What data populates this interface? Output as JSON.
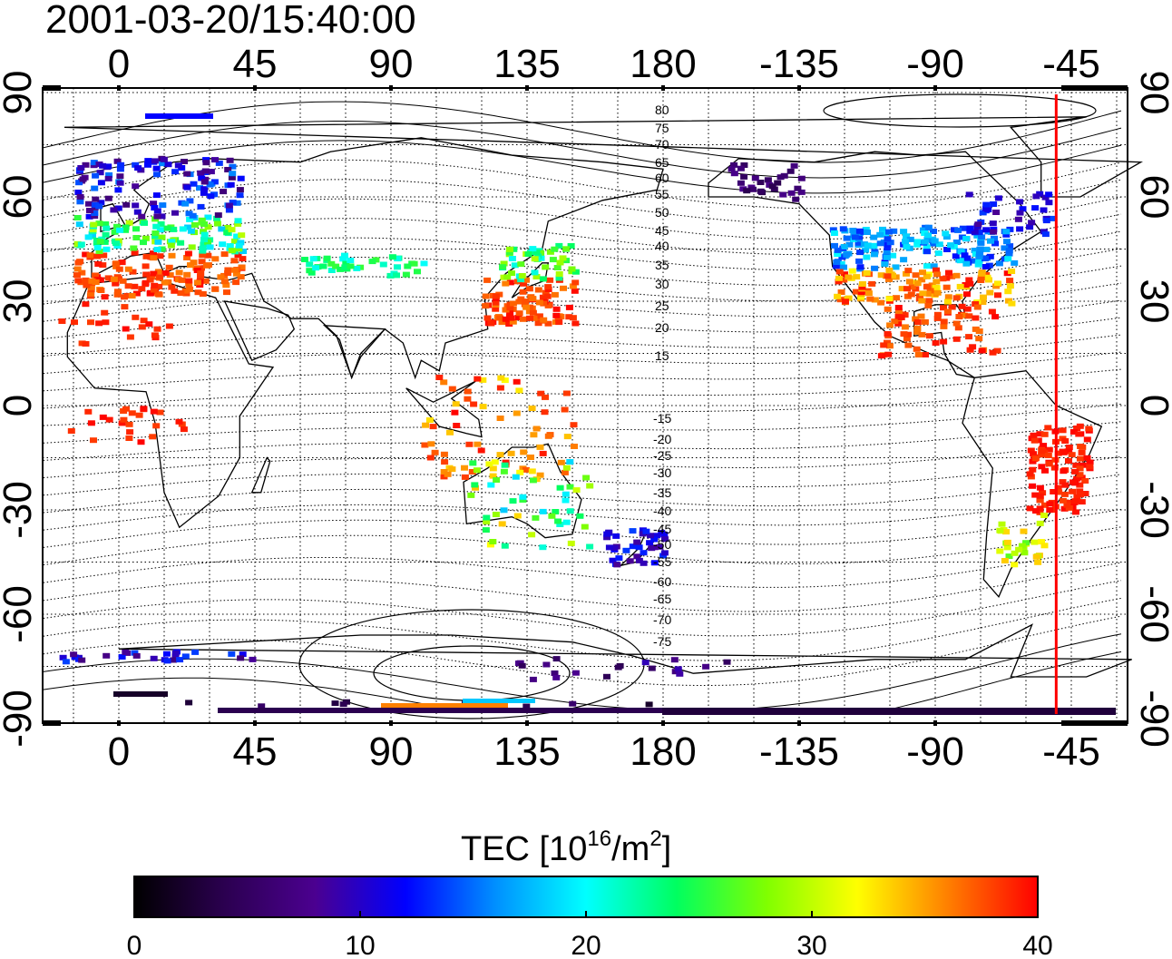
{
  "title": "2001-03-20/15:40:00",
  "map": {
    "lon_ticks": [
      "0",
      "45",
      "90",
      "135",
      "180",
      "-135",
      "-90",
      "-45"
    ],
    "lat_ticks": [
      "90",
      "60",
      "30",
      "0",
      "-30",
      "-60",
      "-90"
    ],
    "contour_labels_upper": [
      "80",
      "75",
      "70",
      "65",
      "60",
      "55",
      "50",
      "45",
      "40",
      "35",
      "30",
      "25",
      "20",
      "15"
    ],
    "contour_labels_lower": [
      "-15",
      "-20",
      "-25",
      "-30",
      "-35",
      "-40",
      "-45",
      "-50",
      "-55",
      "-60",
      "-65",
      "-70",
      "-75"
    ],
    "marker_line_lon": -50,
    "marker_line_color": "#ff0000"
  },
  "colorbar": {
    "label_main": "TEC  [10",
    "label_sup1": "16",
    "label_mid": "/m",
    "label_sup2": "2",
    "label_end": "]",
    "ticks": [
      "0",
      "10",
      "20",
      "30",
      "40"
    ],
    "range": [
      0,
      40
    ],
    "colors": [
      "#000000",
      "#2b0050",
      "#4b0090",
      "#0000ff",
      "#0090ff",
      "#00ffff",
      "#00ff60",
      "#80ff00",
      "#ffff00",
      "#ff8000",
      "#ff0000"
    ]
  }
}
